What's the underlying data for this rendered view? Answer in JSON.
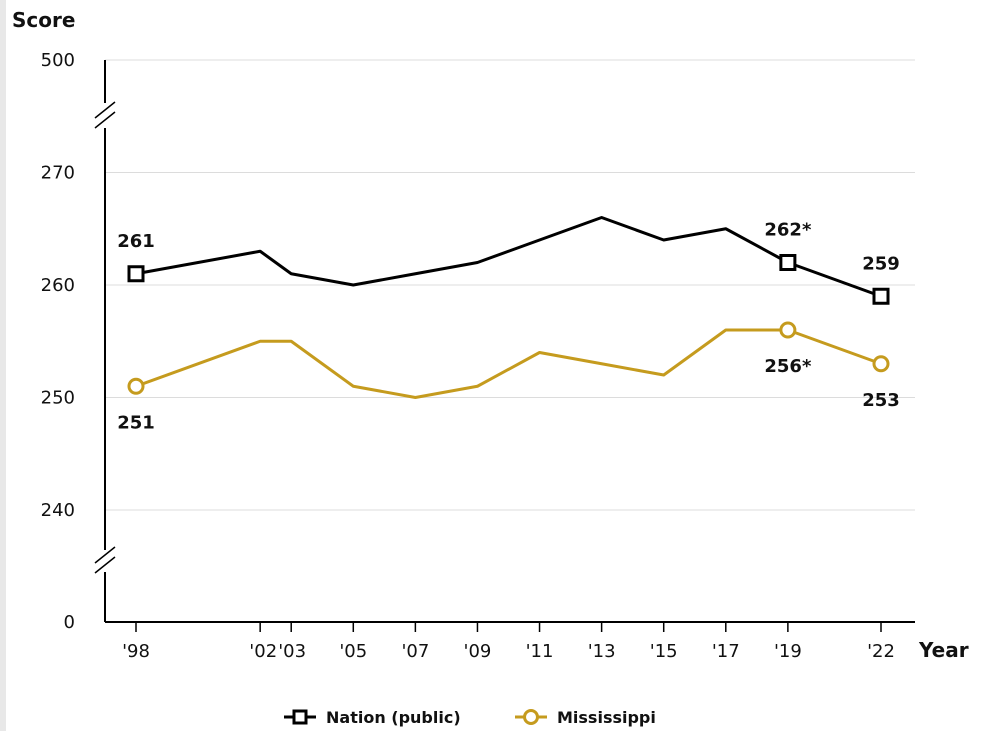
{
  "chart_data": {
    "type": "line",
    "ylabel": "Score",
    "xlabel": "Year",
    "categories": [
      "'98",
      "'02",
      "'03",
      "'05",
      "'07",
      "'09",
      "'11",
      "'13",
      "'15",
      "'17",
      "'19",
      "'22"
    ],
    "years": [
      1998,
      2002,
      2003,
      2005,
      2007,
      2009,
      2011,
      2013,
      2015,
      2017,
      2019,
      2022
    ],
    "y_ticks": [
      0,
      240,
      250,
      260,
      270,
      500
    ],
    "ylim_broken": [
      0,
      240,
      270,
      500
    ],
    "grid": true,
    "legend_position": "bottom",
    "series": [
      {
        "name": "Nation (public)",
        "color": "#000000",
        "marker": "square",
        "values": [
          261,
          263,
          261,
          260,
          261,
          262,
          264,
          266,
          264,
          265,
          262,
          259
        ],
        "labels": [
          {
            "year": 1998,
            "text": "261",
            "pos": "above"
          },
          {
            "year": 2019,
            "text": "262*",
            "pos": "above"
          },
          {
            "year": 2022,
            "text": "259",
            "pos": "above"
          }
        ],
        "marked_years": [
          1998,
          2019,
          2022
        ]
      },
      {
        "name": "Mississippi",
        "color": "#c59b1e",
        "marker": "circle",
        "values": [
          251,
          255,
          255,
          251,
          250,
          251,
          254,
          253,
          252,
          256,
          256,
          253
        ],
        "labels": [
          {
            "year": 1998,
            "text": "251",
            "pos": "below"
          },
          {
            "year": 2019,
            "text": "256*",
            "pos": "below"
          },
          {
            "year": 2022,
            "text": "253",
            "pos": "below"
          }
        ],
        "marked_years": [
          1998,
          2019,
          2022
        ]
      }
    ]
  }
}
